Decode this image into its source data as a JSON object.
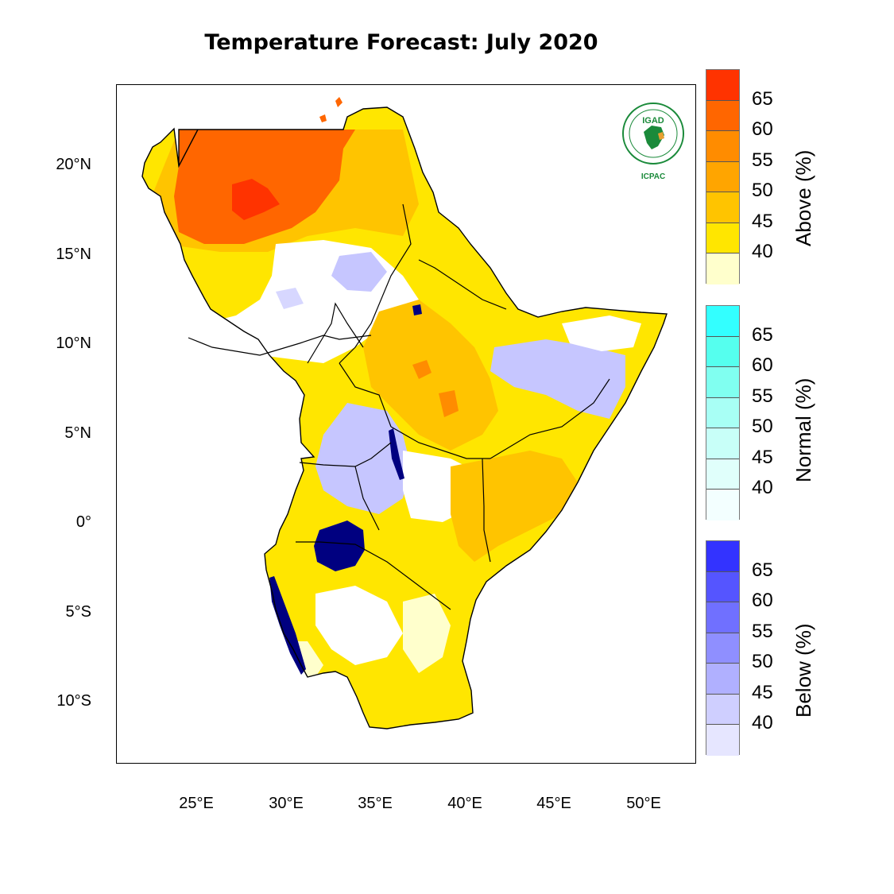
{
  "title": "Temperature Forecast: July 2020",
  "map": {
    "lat_labels": [
      "20°N",
      "15°N",
      "10°N",
      "5°N",
      "0°",
      "5°S",
      "10°S"
    ],
    "lon_labels": [
      "25°E",
      "30°E",
      "35°E",
      "40°E",
      "45°E",
      "50°E"
    ]
  },
  "logo": {
    "org_short": "IGAD",
    "center": "ICPAC"
  },
  "legends": [
    {
      "name": "above",
      "title": "Above (%)",
      "values": [
        "65",
        "60",
        "55",
        "50",
        "45",
        "40"
      ],
      "colors": [
        "#ff3300",
        "#ff6600",
        "#ff8c00",
        "#ffa500",
        "#ffc400",
        "#ffe600",
        "#ffffcc"
      ]
    },
    {
      "name": "normal",
      "title": "Normal (%)",
      "values": [
        "65",
        "60",
        "55",
        "50",
        "45",
        "40"
      ],
      "colors": [
        "#33ffff",
        "#55ffee",
        "#80fff0",
        "#a8fff5",
        "#c8fff8",
        "#e0fffb",
        "#f3ffff"
      ]
    },
    {
      "name": "below",
      "title": "Below (%)",
      "values": [
        "65",
        "60",
        "55",
        "50",
        "45",
        "40"
      ],
      "colors": [
        "#3333ff",
        "#5555ff",
        "#7070ff",
        "#8f8fff",
        "#b0b0ff",
        "#cfcfff",
        "#e6e6ff"
      ]
    }
  ],
  "colors": {
    "above_40": "#ffffcc",
    "above_45": "#ffe600",
    "above_50": "#ffc400",
    "above_55": "#ffa500",
    "above_60": "#ff6600",
    "above_65": "#ff3300",
    "below_45": "#c6c6ff",
    "below_50": "#b0b0f5",
    "lake": "#000080",
    "logo_green": "#1a8a3a"
  }
}
